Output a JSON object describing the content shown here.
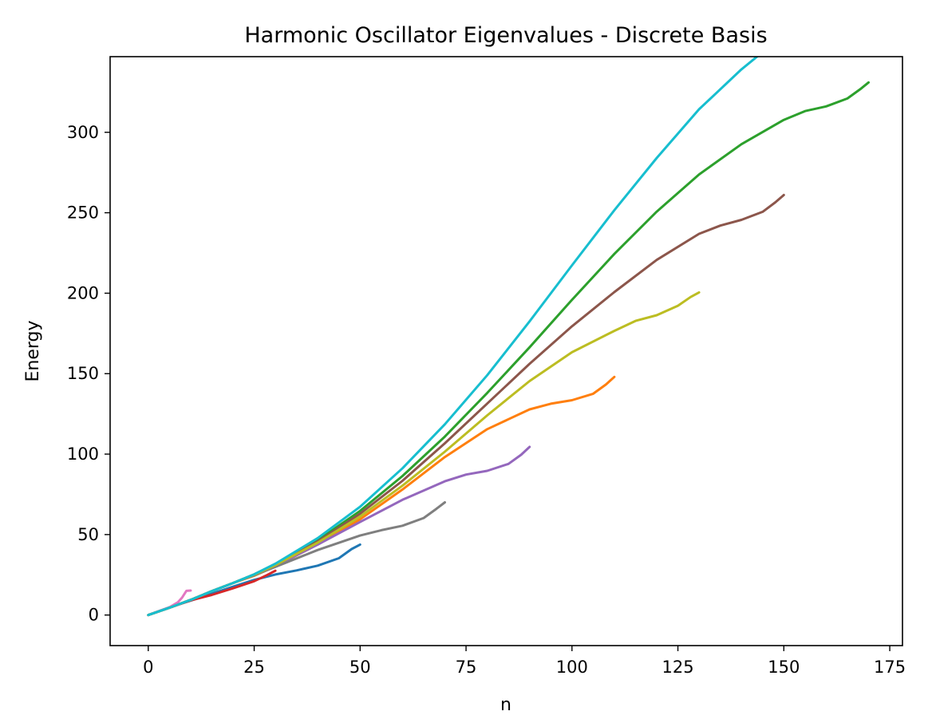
{
  "chart_data": {
    "type": "line",
    "title": "Harmonic Oscillator Eigenvalues - Discrete Basis",
    "xlabel": "n",
    "ylabel": "Energy",
    "xlim": [
      -9,
      178
    ],
    "ylim": [
      -19,
      347
    ],
    "xticks": [
      0,
      25,
      50,
      75,
      100,
      125,
      150,
      175
    ],
    "yticks": [
      0,
      50,
      100,
      150,
      200,
      250,
      300
    ],
    "grid": false,
    "legend": "none",
    "series": [
      {
        "color": "#1f77b4",
        "x": [
          0,
          5,
          10,
          15,
          20,
          25,
          30,
          35,
          40,
          45,
          48,
          50
        ],
        "y": [
          0,
          4.8,
          8.9,
          13.2,
          17.6,
          21.8,
          25.2,
          27.7,
          30.7,
          35.3,
          41,
          43.8
        ]
      },
      {
        "color": "#ff7f0e",
        "x": [
          0,
          5,
          10,
          15,
          20,
          25,
          30,
          40,
          50,
          60,
          70,
          80,
          90,
          95,
          100,
          105,
          108,
          110
        ],
        "y": [
          0,
          4.5,
          9.4,
          14.8,
          19.9,
          24.4,
          30.2,
          43.9,
          59.5,
          78,
          98.2,
          115.5,
          127.8,
          131.3,
          133.5,
          137.5,
          143.2,
          148
        ]
      },
      {
        "color": "#2ca02c",
        "x": [
          0,
          5,
          10,
          15,
          20,
          25,
          30,
          40,
          50,
          60,
          70,
          80,
          90,
          100,
          110,
          120,
          130,
          140,
          150,
          155,
          160,
          165,
          168,
          170
        ],
        "y": [
          0,
          4.5,
          9.4,
          14.8,
          19.9,
          25.3,
          31.7,
          46.4,
          64.7,
          86.4,
          110.9,
          138,
          166.4,
          195.9,
          224.4,
          250.7,
          273.8,
          292.6,
          307.7,
          313.2,
          316.1,
          321,
          326.7,
          331
        ]
      },
      {
        "color": "#d62728",
        "x": [
          0,
          5,
          10,
          15,
          20,
          25,
          28,
          30
        ],
        "y": [
          0,
          4.5,
          9.1,
          12.5,
          16.6,
          21,
          24.8,
          27.5
        ]
      },
      {
        "color": "#9467bd",
        "x": [
          0,
          5,
          10,
          15,
          20,
          25,
          30,
          40,
          50,
          60,
          70,
          75,
          80,
          85,
          88,
          90
        ],
        "y": [
          0,
          4.5,
          9.4,
          14.8,
          19.9,
          25,
          30.6,
          43.8,
          57.8,
          71.6,
          83.1,
          87.3,
          89.6,
          93.9,
          99.6,
          104.5
        ]
      },
      {
        "color": "#8c564b",
        "x": [
          0,
          5,
          10,
          15,
          20,
          25,
          30,
          40,
          50,
          60,
          70,
          80,
          90,
          100,
          110,
          120,
          130,
          135,
          140,
          145,
          148,
          150
        ],
        "y": [
          0,
          4.5,
          9.4,
          14.8,
          19.9,
          25.2,
          31.2,
          45.7,
          63,
          83.4,
          106.7,
          131.4,
          156.1,
          179.4,
          200.7,
          220.7,
          236.9,
          242,
          245.6,
          250.6,
          256.5,
          261
        ]
      },
      {
        "color": "#e377c2",
        "x": [
          0,
          5,
          7,
          8,
          9,
          10
        ],
        "y": [
          0,
          4.8,
          8,
          10.9,
          15,
          15.2
        ]
      },
      {
        "color": "#7f7f7f",
        "x": [
          0,
          5,
          10,
          15,
          20,
          25,
          30,
          40,
          50,
          55,
          60,
          65,
          68,
          70
        ],
        "y": [
          0,
          4.5,
          9.4,
          14.8,
          19.9,
          24.7,
          29.9,
          40.4,
          49.4,
          52.7,
          55.5,
          60.3,
          66,
          70
        ]
      },
      {
        "color": "#bcbd22",
        "x": [
          0,
          5,
          10,
          15,
          20,
          25,
          30,
          40,
          50,
          60,
          70,
          80,
          90,
          100,
          110,
          115,
          120,
          125,
          128,
          130
        ],
        "y": [
          0,
          4.5,
          9.4,
          14.8,
          19.9,
          25.1,
          31,
          45,
          61.2,
          80.4,
          101.5,
          124.1,
          145.4,
          163.3,
          176.6,
          182.8,
          186.3,
          192.2,
          197.6,
          200.5
        ]
      },
      {
        "color": "#17becf",
        "x": [
          0,
          5,
          10,
          15,
          20,
          25,
          30,
          40,
          50,
          60,
          70,
          80,
          90,
          100,
          110,
          120,
          130,
          140,
          146
        ],
        "y": [
          0,
          4.5,
          9.4,
          14.8,
          19.9,
          25.3,
          31.9,
          47.8,
          67.3,
          91.2,
          118.5,
          149,
          182.5,
          217.3,
          251.6,
          284,
          314.3,
          339.1,
          352
        ]
      }
    ]
  }
}
